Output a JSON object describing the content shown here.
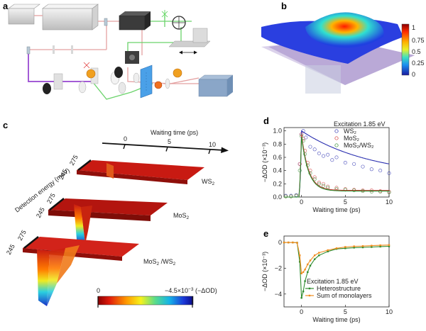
{
  "panel_labels": [
    "a",
    "b",
    "c",
    "d",
    "e"
  ],
  "panel_b": {
    "colorbar_ticks": [
      "1",
      "0.75",
      "0.5",
      "0.25",
      "0"
    ]
  },
  "panel_c": {
    "waiting_time_title": "Waiting time (ps)",
    "waiting_ticks": [
      "0",
      "5",
      "10"
    ],
    "detection_energy_label": "Detection energy (meV)",
    "energy_tick_pairs": [
      [
        "245",
        "275"
      ],
      [
        "245",
        "275"
      ],
      [
        "245",
        "275"
      ]
    ],
    "surface_labels": [
      {
        "main": "WS",
        "sub": "2",
        "tail": ""
      },
      {
        "main": "MoS",
        "sub": "2",
        "tail": ""
      },
      {
        "main": "MoS",
        "sub": "2",
        "tail": " /WS",
        "sub2": "2"
      }
    ],
    "colorbar_min_label": "0",
    "colorbar_max_label": "−4.5×10",
    "colorbar_max_exp": "−3",
    "colorbar_max_unit": " (−ΔOD)",
    "colors": {
      "ws2": "#c81a12",
      "mos2": "#b3150f",
      "hetero": "#d2231a"
    }
  },
  "chart_data": [
    {
      "panel": "d",
      "type": "scatter",
      "title": "",
      "annotation": "Excitation 1.85 eV",
      "xlabel": "Waiting time (ps)",
      "ylabel": "−ΔOD (×10⁻³)",
      "xlim": [
        -2,
        10
      ],
      "ylim": [
        0,
        1.05
      ],
      "xticks": [
        "0",
        "5",
        "10"
      ],
      "yticks": [
        "0.0",
        "0.2",
        "0.4",
        "0.6",
        "0.8",
        "1.0"
      ],
      "series": [
        {
          "name": "WS2",
          "color": "#2a2fb0",
          "marker": "circle",
          "x": [
            -1.8,
            -1.2,
            -0.6,
            -0.2,
            0.0,
            0.2,
            0.5,
            1.0,
            1.5,
            2.0,
            2.5,
            3.0,
            3.5,
            4.0,
            5.0,
            6.0,
            7.0,
            8.0,
            9.0,
            10.0
          ],
          "y": [
            0.02,
            0.02,
            0.03,
            0.5,
            0.95,
            1.0,
            0.9,
            0.76,
            0.72,
            0.66,
            0.62,
            0.64,
            0.56,
            0.6,
            0.52,
            0.5,
            0.46,
            0.42,
            0.4,
            0.36
          ]
        },
        {
          "name": "MoS2",
          "color": "#d23a3a",
          "marker": "circle",
          "x": [
            -1.8,
            -1.2,
            -0.6,
            -0.2,
            0.0,
            0.2,
            0.4,
            0.7,
            1.0,
            1.5,
            2.0,
            2.5,
            3.0,
            4.0,
            5.0,
            6.0,
            7.0,
            8.0,
            9.0,
            10.0
          ],
          "y": [
            0.01,
            0.01,
            0.02,
            0.5,
            0.95,
            0.88,
            0.7,
            0.52,
            0.4,
            0.3,
            0.22,
            0.2,
            0.16,
            0.14,
            0.12,
            0.11,
            0.1,
            0.1,
            0.09,
            0.08
          ]
        },
        {
          "name": "MoS2/WS2",
          "color": "#2f8a2f",
          "marker": "circle",
          "x": [
            -1.8,
            -1.2,
            -0.6,
            -0.2,
            0.0,
            0.2,
            0.4,
            0.7,
            1.0,
            1.5,
            2.0,
            2.5,
            3.0,
            4.0,
            5.0,
            6.0,
            7.0,
            8.0,
            9.0,
            10.0
          ],
          "y": [
            0.01,
            0.01,
            0.02,
            0.4,
            0.92,
            0.85,
            0.65,
            0.48,
            0.36,
            0.27,
            0.2,
            0.17,
            0.14,
            0.12,
            0.11,
            0.1,
            0.09,
            0.08,
            0.08,
            0.07
          ]
        }
      ]
    },
    {
      "panel": "e",
      "type": "line",
      "title": "",
      "annotation": "Excitation 1.85 eV",
      "xlabel": "Waiting time (ps)",
      "ylabel": "−ΔOD (×10⁻³)",
      "xlim": [
        -2,
        10
      ],
      "ylim": [
        -5,
        0.5
      ],
      "xticks": [
        "0",
        "5",
        "10"
      ],
      "yticks": [
        "0",
        "−2",
        "−4"
      ],
      "series": [
        {
          "name": "Heterostructure",
          "color": "#2e8b2e",
          "x": [
            -2.0,
            -1.5,
            -1.0,
            -0.5,
            -0.2,
            0.0,
            0.2,
            0.4,
            0.7,
            1.0,
            1.5,
            2.0,
            3.0,
            4.0,
            5.0,
            6.0,
            7.0,
            8.0,
            9.0,
            10.0
          ],
          "y": [
            0.0,
            0.0,
            0.0,
            -0.02,
            -1.5,
            -4.3,
            -3.8,
            -3.0,
            -2.3,
            -1.8,
            -1.3,
            -1.0,
            -0.7,
            -0.5,
            -0.45,
            -0.4,
            -0.38,
            -0.35,
            -0.32,
            -0.3
          ]
        },
        {
          "name": "Sum of monolayers",
          "color": "#f08c1e",
          "x": [
            -2.0,
            -1.5,
            -1.0,
            -0.5,
            -0.2,
            0.0,
            0.2,
            0.4,
            0.7,
            1.0,
            1.5,
            2.0,
            3.0,
            4.0,
            5.0,
            6.0,
            7.0,
            8.0,
            9.0,
            10.0
          ],
          "y": [
            0.0,
            0.0,
            0.0,
            -0.02,
            -1.0,
            -2.4,
            -2.3,
            -2.1,
            -1.7,
            -1.4,
            -1.0,
            -0.8,
            -0.6,
            -0.45,
            -0.35,
            -0.3,
            -0.28,
            -0.25,
            -0.22,
            -0.2
          ]
        }
      ]
    }
  ]
}
